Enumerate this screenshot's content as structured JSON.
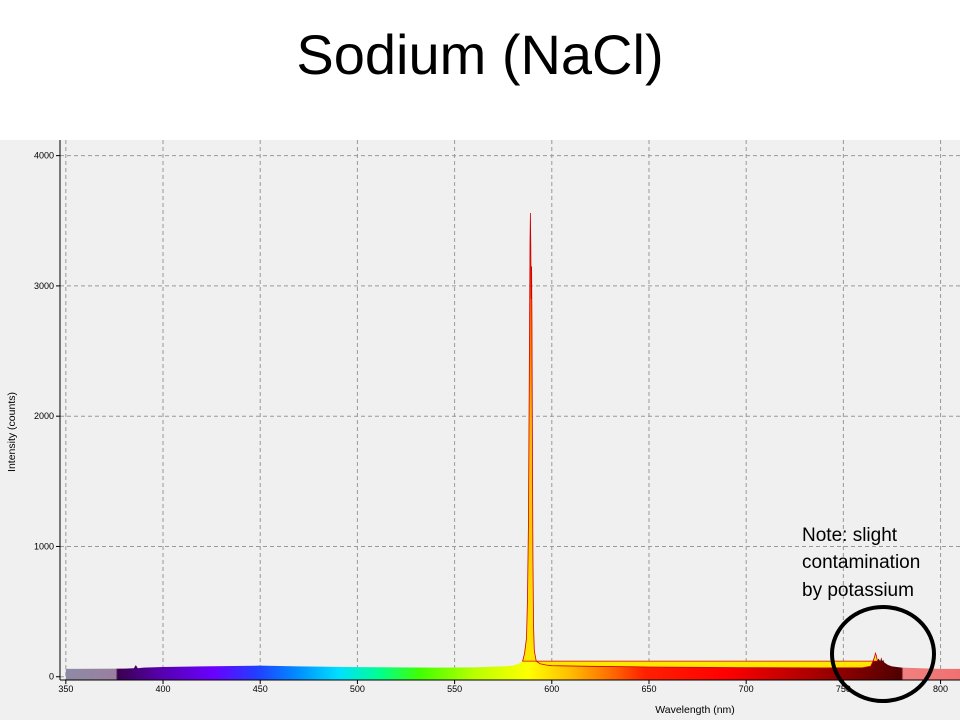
{
  "slide": {
    "title": "Sodium (NaCl)"
  },
  "chart_data": {
    "type": "area",
    "xlabel": "Wavelength (nm)",
    "ylabel": "Intensity (counts)",
    "xlim": [
      347,
      810
    ],
    "ylim": [
      -25,
      4120
    ],
    "grid": true,
    "x_ticks": [
      350,
      400,
      450,
      500,
      550,
      600,
      650,
      700,
      750,
      800
    ],
    "y_ticks": [
      0,
      1000,
      2000,
      3000,
      4000
    ],
    "series": [
      {
        "x": [
          350,
          380,
          385,
          386,
          387,
          390,
          400,
          420,
          450,
          470,
          480,
          490,
          500,
          520,
          540,
          560,
          570,
          575,
          580,
          583,
          585,
          586,
          587,
          587.5,
          588,
          588.3,
          588.6,
          588.8,
          589.0,
          589.2,
          589.4,
          589.6,
          589.8,
          590.0,
          590.3,
          590.6,
          591,
          592,
          594,
          597,
          600,
          620,
          650,
          700,
          740,
          760,
          764,
          765,
          766,
          766.5,
          767,
          767.5,
          768,
          769,
          769.5,
          770,
          770.5,
          771,
          772,
          773,
          775,
          780,
          790,
          800,
          810
        ],
        "y": [
          60,
          62,
          65,
          90,
          65,
          70,
          75,
          80,
          85,
          80,
          78,
          76,
          74,
          72,
          70,
          72,
          78,
          80,
          85,
          100,
          120,
          180,
          300,
          600,
          1200,
          2000,
          2800,
          3350,
          3560,
          3300,
          2900,
          3150,
          2700,
          1900,
          900,
          400,
          200,
          120,
          100,
          90,
          85,
          80,
          75,
          70,
          68,
          70,
          80,
          110,
          150,
          180,
          160,
          120,
          140,
          120,
          150,
          120,
          130,
          110,
          100,
          90,
          80,
          70,
          65,
          60,
          60
        ]
      }
    ],
    "annotation": {
      "lines": [
        "Note: slight",
        "contamination",
        "by potassium"
      ]
    }
  }
}
